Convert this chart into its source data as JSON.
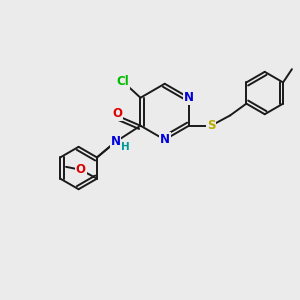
{
  "bg_color": "#ebebeb",
  "bond_color": "#1a1a1a",
  "bond_width": 1.4,
  "atom_colors": {
    "C": "#000000",
    "N": "#0000dd",
    "O": "#dd0000",
    "S": "#bbaa00",
    "Cl": "#00bb00",
    "H": "#009999"
  },
  "font_size": 8.5
}
